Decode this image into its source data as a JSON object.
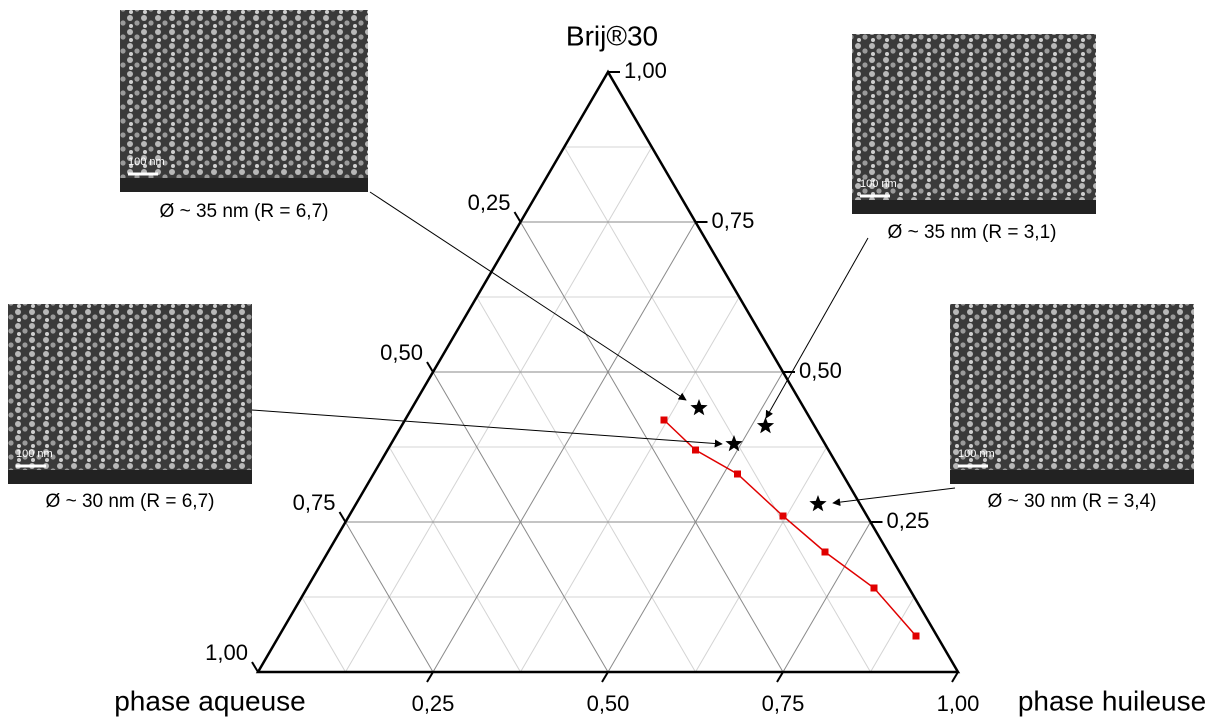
{
  "chart_data": {
    "type": "ternary",
    "title": "Brij®30",
    "left_vertex_label": "phase aqueuse",
    "right_vertex_label": "phase huileuse",
    "bottom_ticks": [
      {
        "value": 0.25,
        "label": "0,25"
      },
      {
        "value": 0.5,
        "label": "0,50"
      },
      {
        "value": 0.75,
        "label": "0,75"
      },
      {
        "value": 1,
        "label": "1,00"
      }
    ],
    "right_ticks": [
      {
        "value": 0.25,
        "label": "0,25"
      },
      {
        "value": 0.5,
        "label": "0,50"
      },
      {
        "value": 0.75,
        "label": "0,75"
      },
      {
        "value": 1,
        "label": "1,00"
      }
    ],
    "left_ticks": [
      {
        "value": 0.25,
        "label": "0,25"
      },
      {
        "value": 0.5,
        "label": "0,50"
      },
      {
        "value": 0.75,
        "label": "0,75"
      },
      {
        "value": 1,
        "label": "1,00"
      }
    ],
    "minor_grid": [
      0.125,
      0.375,
      0.625,
      0.875
    ],
    "series": [
      {
        "color": "#e00000",
        "marker": "square",
        "huileuse": [
          0.37,
          0.44,
          0.52,
          0.62,
          0.71,
          0.81,
          0.91
        ],
        "brij": [
          0.42,
          0.37,
          0.33,
          0.26,
          0.2,
          0.14,
          0.06
        ]
      },
      {
        "color": "#000000",
        "marker": "star",
        "huileuse": [
          0.41,
          0.49,
          0.52,
          0.66
        ],
        "brij": [
          0.44,
          0.38,
          0.41,
          0.28
        ]
      }
    ],
    "images": [
      {
        "caption": "Ø ~ 35 nm (R = 6,7)",
        "scale": "100 nm"
      },
      {
        "caption": "Ø ~ 35 nm (R = 3,1)",
        "scale": "100 nm"
      },
      {
        "caption": "Ø ~ 30 nm (R = 6,7)",
        "scale": "100 nm"
      },
      {
        "caption": "Ø ~ 30 nm (R = 3,4)",
        "scale": "100 nm"
      }
    ]
  }
}
